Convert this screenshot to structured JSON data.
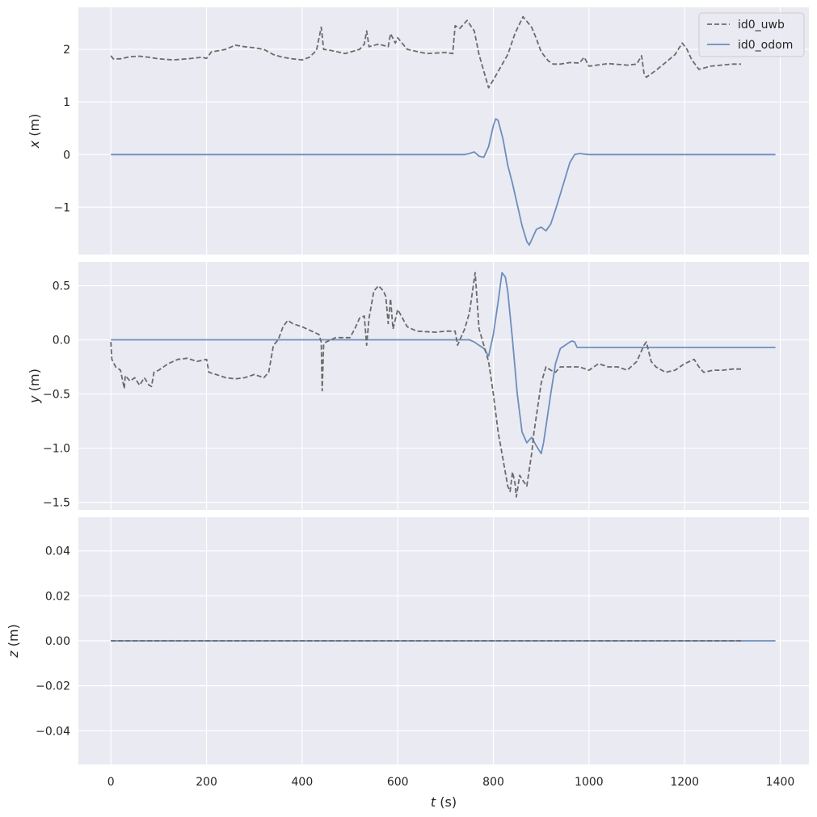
{
  "chart_data": {
    "type": "line",
    "colors": {
      "background": "#eaeaf2",
      "grid": "#ffffff",
      "uwb": "#6b6b6b",
      "odom": "#6c8ebf",
      "text": "#262626"
    },
    "legend": {
      "placement": "top-right",
      "entries": [
        {
          "name": "id0_uwb",
          "style": "dashed"
        },
        {
          "name": "id0_odom",
          "style": "solid"
        }
      ]
    },
    "xlabel_var": "t",
    "xlabel_unit": " (s)",
    "xlim": [
      -68,
      1460
    ],
    "xticks": [
      0,
      200,
      400,
      600,
      800,
      1000,
      1200,
      1400
    ],
    "xtick_labels": [
      "0",
      "200",
      "400",
      "600",
      "800",
      "1000",
      "1200",
      "1400"
    ],
    "panels": [
      {
        "id": "x",
        "ylabel_var": "x",
        "ylabel_unit": " (m)",
        "ylim": [
          -1.9,
          2.8
        ],
        "yticks": [
          2,
          1,
          0,
          -1
        ],
        "ytick_labels": [
          "2",
          "1",
          "0",
          "−1"
        ],
        "series": [
          {
            "name": "id0_uwb",
            "x": [
              0,
              5,
              20,
              40,
              60,
              80,
              100,
              130,
              160,
              190,
              200,
              210,
              240,
              260,
              280,
              300,
              320,
              340,
              360,
              380,
              400,
              415,
              430,
              440,
              445,
              460,
              490,
              520,
              530,
              535,
              540,
              560,
              580,
              585,
              595,
              600,
              620,
              640,
              660,
              700,
              715,
              720,
              730,
              745,
              760,
              770,
              790,
              800,
              830,
              845,
              862,
              880,
              890,
              900,
              915,
              925,
              940,
              960,
              980,
              990,
              1000,
              1040,
              1080,
              1100,
              1110,
              1115,
              1120,
              1140,
              1160,
              1180,
              1195,
              1205,
              1215,
              1230,
              1255,
              1300,
              1318
            ],
            "y": [
              1.88,
              1.82,
              1.82,
              1.86,
              1.87,
              1.85,
              1.82,
              1.8,
              1.82,
              1.85,
              1.83,
              1.95,
              2.0,
              2.08,
              2.05,
              2.03,
              2.0,
              1.9,
              1.85,
              1.82,
              1.8,
              1.85,
              1.98,
              2.42,
              2.0,
              1.98,
              1.92,
              2.0,
              2.1,
              2.35,
              2.05,
              2.1,
              2.05,
              2.3,
              2.12,
              2.22,
              2.0,
              1.96,
              1.92,
              1.94,
              1.92,
              2.45,
              2.4,
              2.55,
              2.35,
              1.9,
              1.27,
              1.42,
              1.9,
              2.3,
              2.62,
              2.42,
              2.2,
              1.95,
              1.78,
              1.72,
              1.72,
              1.75,
              1.74,
              1.85,
              1.68,
              1.73,
              1.7,
              1.72,
              1.88,
              1.55,
              1.47,
              1.6,
              1.75,
              1.9,
              2.12,
              2.0,
              1.8,
              1.62,
              1.68,
              1.72,
              1.72
            ]
          },
          {
            "name": "id0_odom",
            "x": [
              0,
              700,
              740,
              750,
              760,
              770,
              780,
              790,
              800,
              805,
              810,
              820,
              830,
              840,
              850,
              860,
              870,
              875,
              880,
              890,
              900,
              910,
              920,
              930,
              940,
              950,
              960,
              970,
              980,
              1000,
              1200,
              1390
            ],
            "y": [
              0,
              0,
              0,
              0.02,
              0.05,
              -0.03,
              -0.05,
              0.15,
              0.55,
              0.68,
              0.65,
              0.3,
              -0.2,
              -0.55,
              -0.95,
              -1.35,
              -1.65,
              -1.72,
              -1.62,
              -1.42,
              -1.38,
              -1.45,
              -1.32,
              -1.05,
              -0.75,
              -0.45,
              -0.15,
              0.0,
              0.02,
              0,
              0,
              0
            ]
          }
        ]
      },
      {
        "id": "y",
        "ylabel_var": "y",
        "ylabel_unit": " (m)",
        "ylim": [
          -1.57,
          0.72
        ],
        "yticks": [
          0.5,
          0.0,
          -0.5,
          -1.0,
          -1.5
        ],
        "ytick_labels": [
          "0.5",
          "0.0",
          "−0.5",
          "−1.0",
          "−1.5"
        ],
        "series": [
          {
            "name": "id0_uwb",
            "x": [
              0,
              2,
              10,
              20,
              28,
              30,
              40,
              50,
              60,
              70,
              80,
              85,
              90,
              100,
              120,
              140,
              160,
              180,
              200,
              205,
              220,
              240,
              260,
              280,
              300,
              320,
              330,
              340,
              350,
              360,
              370,
              380,
              400,
              420,
              435,
              440,
              442,
              445,
              450,
              470,
              500,
              510,
              520,
              530,
              535,
              540,
              550,
              560,
              570,
              575,
              580,
              585,
              590,
              600,
              620,
              640,
              680,
              700,
              720,
              725,
              740,
              750,
              762,
              770,
              780,
              790,
              800,
              810,
              820,
              830,
              835,
              840,
              845,
              848,
              855,
              862,
              870,
              880,
              885,
              890,
              900,
              910,
              920,
              930,
              940,
              950,
              980,
              1000,
              1020,
              1040,
              1060,
              1080,
              1100,
              1115,
              1120,
              1130,
              1140,
              1160,
              1180,
              1200,
              1220,
              1230,
              1240,
              1260,
              1280,
              1300,
              1318
            ],
            "y": [
              -0.02,
              -0.18,
              -0.25,
              -0.28,
              -0.45,
              -0.33,
              -0.38,
              -0.35,
              -0.42,
              -0.35,
              -0.42,
              -0.43,
              -0.3,
              -0.28,
              -0.22,
              -0.18,
              -0.17,
              -0.2,
              -0.18,
              -0.3,
              -0.32,
              -0.35,
              -0.36,
              -0.35,
              -0.32,
              -0.35,
              -0.3,
              -0.05,
              0.0,
              0.12,
              0.18,
              0.15,
              0.12,
              0.08,
              0.05,
              -0.02,
              -0.47,
              -0.04,
              -0.02,
              0.02,
              0.02,
              0.1,
              0.2,
              0.22,
              -0.05,
              0.2,
              0.45,
              0.5,
              0.45,
              0.4,
              0.15,
              0.38,
              0.1,
              0.28,
              0.12,
              0.08,
              0.07,
              0.08,
              0.08,
              -0.05,
              0.1,
              0.25,
              0.62,
              0.1,
              -0.05,
              -0.2,
              -0.5,
              -0.85,
              -1.1,
              -1.35,
              -1.4,
              -1.22,
              -1.32,
              -1.45,
              -1.25,
              -1.3,
              -1.35,
              -1.05,
              -0.85,
              -0.7,
              -0.4,
              -0.25,
              -0.28,
              -0.3,
              -0.25,
              -0.25,
              -0.25,
              -0.28,
              -0.22,
              -0.25,
              -0.25,
              -0.28,
              -0.2,
              -0.05,
              -0.02,
              -0.2,
              -0.25,
              -0.3,
              -0.28,
              -0.22,
              -0.18,
              -0.25,
              -0.3,
              -0.28,
              -0.28,
              -0.27,
              -0.27
            ]
          },
          {
            "name": "id0_odom",
            "x": [
              0,
              750,
              760,
              770,
              780,
              790,
              800,
              810,
              818,
              825,
              830,
              840,
              850,
              860,
              870,
              880,
              890,
              900,
              905,
              910,
              920,
              930,
              940,
              950,
              960,
              965,
              970,
              975,
              980,
              1000,
              1200,
              1390
            ],
            "y": [
              0,
              0,
              -0.02,
              -0.05,
              -0.08,
              -0.15,
              0.05,
              0.35,
              0.62,
              0.58,
              0.45,
              0.0,
              -0.5,
              -0.85,
              -0.95,
              -0.9,
              -0.98,
              -1.05,
              -0.95,
              -0.8,
              -0.5,
              -0.22,
              -0.08,
              -0.05,
              -0.02,
              -0.01,
              -0.02,
              -0.07,
              -0.07,
              -0.07,
              -0.07,
              -0.07
            ]
          }
        ]
      },
      {
        "id": "z",
        "ylabel_var": "z",
        "ylabel_unit": " (m)",
        "ylim": [
          -0.055,
          0.055
        ],
        "yticks": [
          0.04,
          0.02,
          0.0,
          -0.02,
          -0.04
        ],
        "ytick_labels": [
          "0.04",
          "0.02",
          "0.00",
          "−0.02",
          "−0.04"
        ],
        "series": [
          {
            "name": "id0_uwb",
            "x": [
              0,
              1318
            ],
            "y": [
              0,
              0
            ]
          },
          {
            "name": "id0_odom",
            "x": [
              0,
              1390
            ],
            "y": [
              0,
              0
            ]
          }
        ]
      }
    ]
  }
}
